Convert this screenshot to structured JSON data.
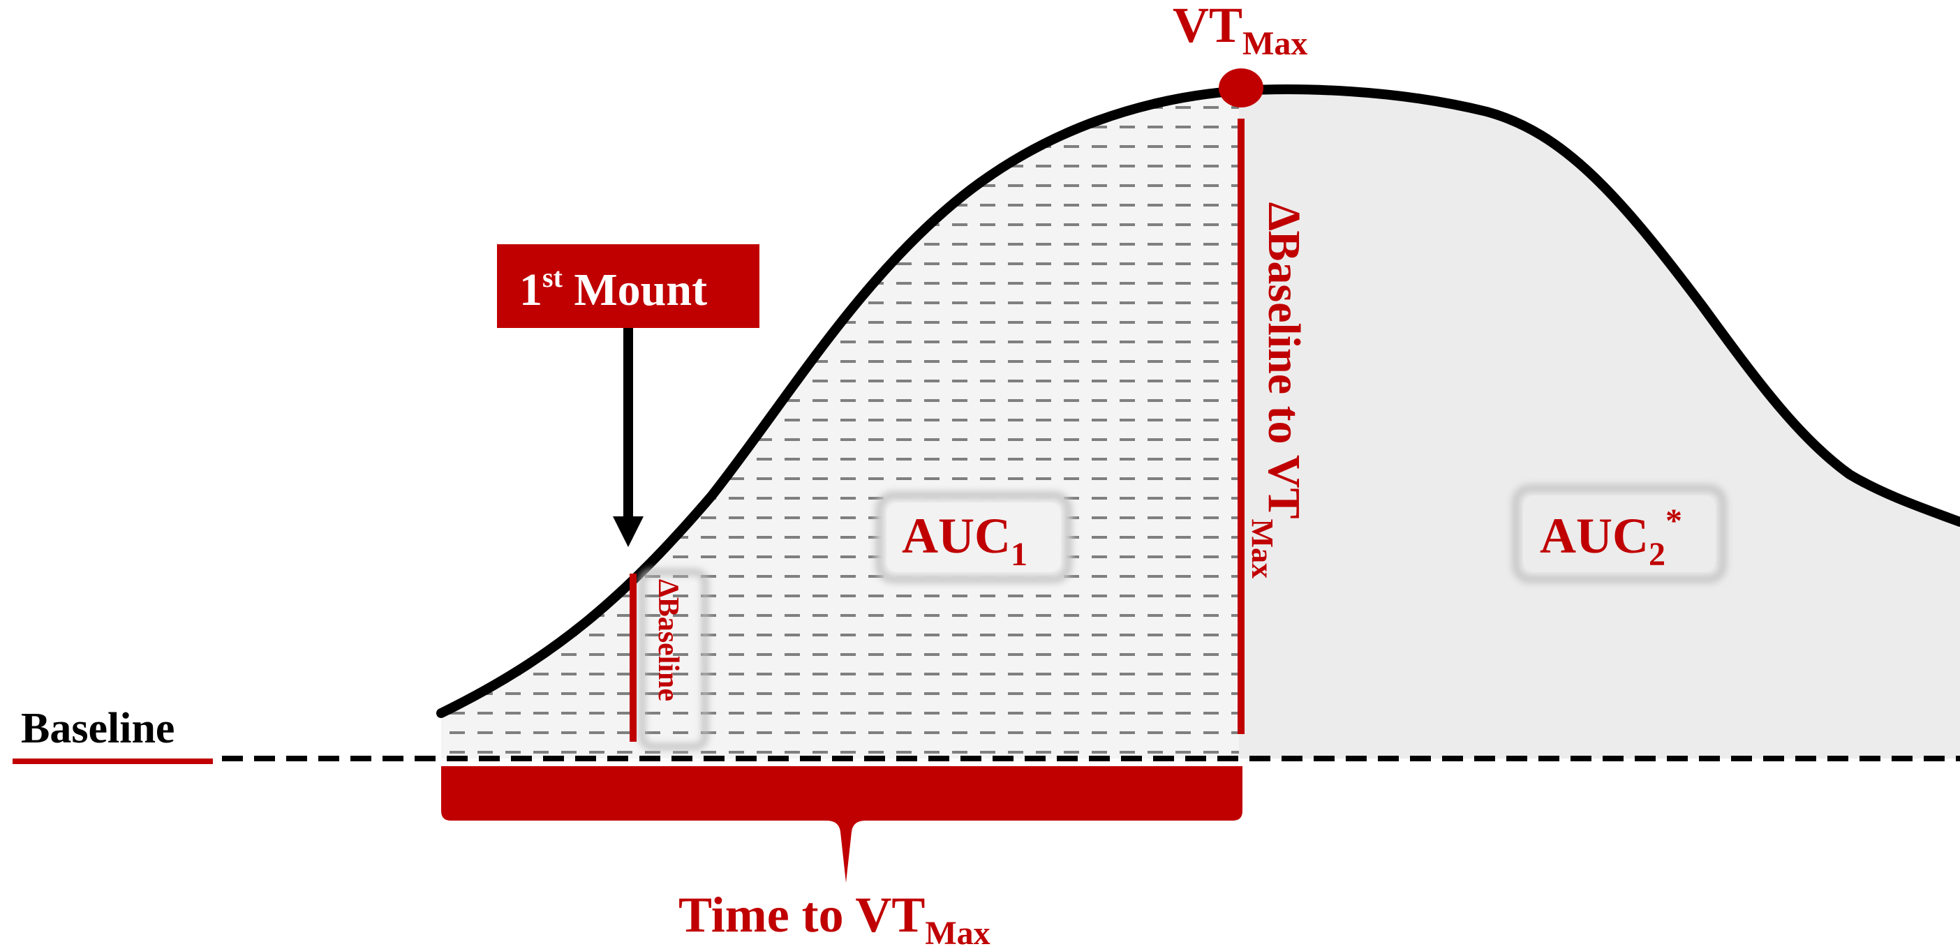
{
  "labels": {
    "baseline": "Baseline",
    "first_mount_sup": "st",
    "first_mount_num": "1",
    "first_mount_rest": " Mount",
    "vt_max_main": "VT",
    "vt_max_sub": "Max",
    "auc1_main": "AUC",
    "auc1_sub": "1",
    "auc2_main": "AUC",
    "auc2_sub": "2",
    "auc2_sup": "*",
    "delta_baseline": "∆Baseline",
    "delta_baseline_to_vtmax_main": "∆Baseline to VT",
    "delta_baseline_to_vtmax_sub": "Max",
    "time_to_vtmax_main": "Time to VT",
    "time_to_vtmax_sub": "Max"
  },
  "colors": {
    "accent_red": "#c00000",
    "curve_black": "#000000",
    "shaded_gray": "#ececec",
    "hatch_gray": "#7f7f7f"
  }
}
